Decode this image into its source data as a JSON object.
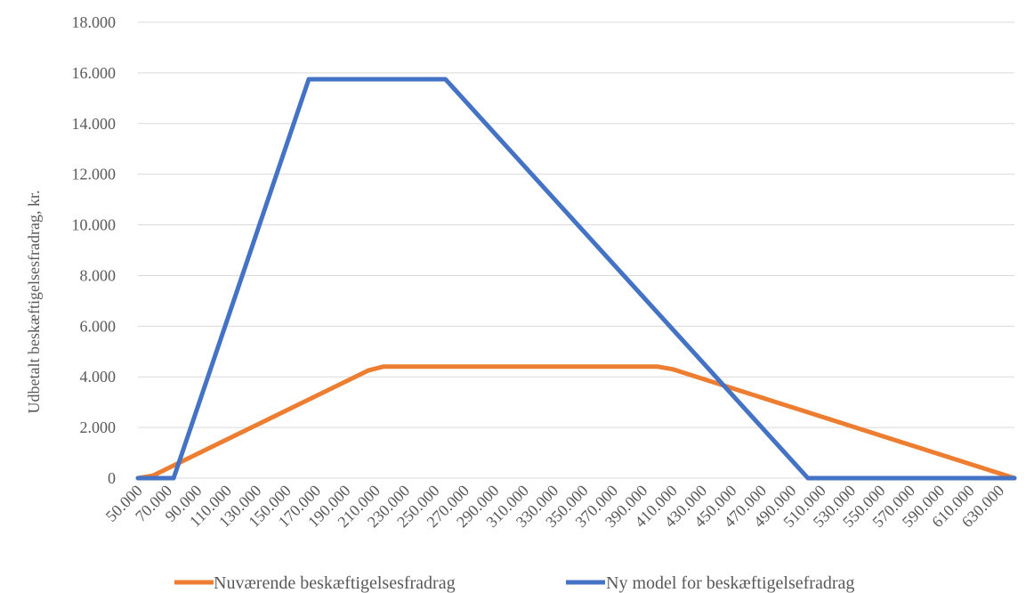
{
  "chart_data": {
    "type": "line",
    "title": "",
    "xlabel": "",
    "ylabel": "Udbetalt beskæftigelsesfradrag, kr.",
    "xlim": [
      50000,
      640000
    ],
    "ylim": [
      0,
      18000
    ],
    "grid": true,
    "legend_position": "bottom",
    "y_ticks": [
      {
        "value": 0,
        "label": "0"
      },
      {
        "value": 2000,
        "label": "2.000"
      },
      {
        "value": 4000,
        "label": "4.000"
      },
      {
        "value": 6000,
        "label": "6.000"
      },
      {
        "value": 8000,
        "label": "8.000"
      },
      {
        "value": 10000,
        "label": "10.000"
      },
      {
        "value": 12000,
        "label": "12.000"
      },
      {
        "value": 14000,
        "label": "14.000"
      },
      {
        "value": 16000,
        "label": "16.000"
      },
      {
        "value": 18000,
        "label": "18.000"
      }
    ],
    "x_ticks": [
      {
        "value": 50000,
        "label": "50.000"
      },
      {
        "value": 70000,
        "label": "70.000"
      },
      {
        "value": 90000,
        "label": "90.000"
      },
      {
        "value": 110000,
        "label": "110.000"
      },
      {
        "value": 130000,
        "label": "130.000"
      },
      {
        "value": 150000,
        "label": "150.000"
      },
      {
        "value": 170000,
        "label": "170.000"
      },
      {
        "value": 190000,
        "label": "190.000"
      },
      {
        "value": 210000,
        "label": "210.000"
      },
      {
        "value": 230000,
        "label": "230.000"
      },
      {
        "value": 250000,
        "label": "250.000"
      },
      {
        "value": 270000,
        "label": "270.000"
      },
      {
        "value": 290000,
        "label": "290.000"
      },
      {
        "value": 310000,
        "label": "310.000"
      },
      {
        "value": 330000,
        "label": "330.000"
      },
      {
        "value": 350000,
        "label": "350.000"
      },
      {
        "value": 370000,
        "label": "370.000"
      },
      {
        "value": 390000,
        "label": "390.000"
      },
      {
        "value": 410000,
        "label": "410.000"
      },
      {
        "value": 430000,
        "label": "430.000"
      },
      {
        "value": 450000,
        "label": "450.000"
      },
      {
        "value": 470000,
        "label": "470.000"
      },
      {
        "value": 490000,
        "label": "490.000"
      },
      {
        "value": 510000,
        "label": "510.000"
      },
      {
        "value": 530000,
        "label": "530.000"
      },
      {
        "value": 550000,
        "label": "550.000"
      },
      {
        "value": 570000,
        "label": "570.000"
      },
      {
        "value": 590000,
        "label": "590.000"
      },
      {
        "value": 610000,
        "label": "610.000"
      },
      {
        "value": 630000,
        "label": "630.000"
      }
    ],
    "series": [
      {
        "name": "Nuværende beskæftigelsesfradrag",
        "color": "#ed7d31",
        "points": [
          {
            "x": 50000,
            "y": 0
          },
          {
            "x": 60000,
            "y": 100
          },
          {
            "x": 205000,
            "y": 4250
          },
          {
            "x": 215000,
            "y": 4400
          },
          {
            "x": 400000,
            "y": 4400
          },
          {
            "x": 410000,
            "y": 4300
          },
          {
            "x": 640000,
            "y": 0
          }
        ]
      },
      {
        "name": "Ny model for beskæftigelsefradrag",
        "color": "#4472c4",
        "points": [
          {
            "x": 50000,
            "y": 0
          },
          {
            "x": 74000,
            "y": 0
          },
          {
            "x": 165000,
            "y": 15750
          },
          {
            "x": 257000,
            "y": 15750
          },
          {
            "x": 501000,
            "y": 0
          },
          {
            "x": 640000,
            "y": 0
          }
        ]
      }
    ]
  }
}
